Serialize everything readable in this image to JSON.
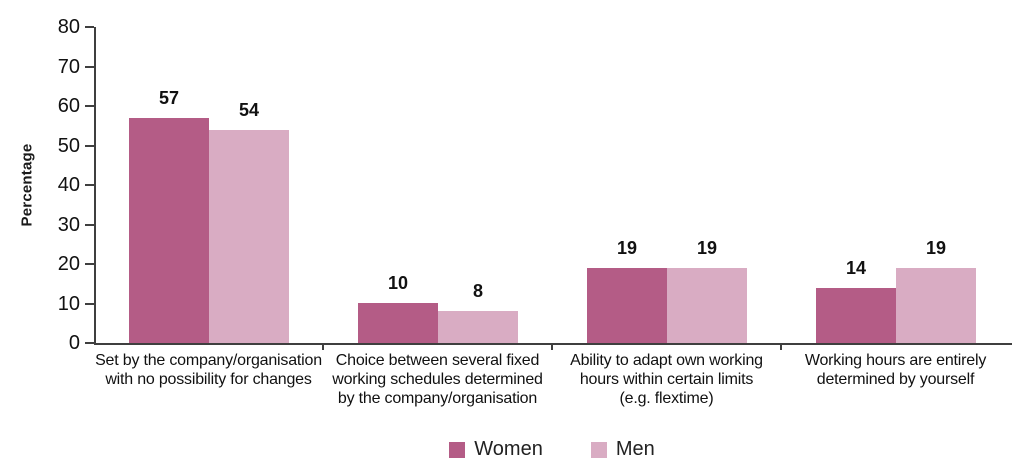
{
  "chart_data": {
    "type": "bar",
    "title": "",
    "xlabel": "",
    "ylabel": "Percentage",
    "ylim": [
      0,
      80
    ],
    "yticks": [
      0,
      10,
      20,
      30,
      40,
      50,
      60,
      70,
      80
    ],
    "grid": false,
    "legend_position": "bottom",
    "bar_value_labels_shown": true,
    "categories": [
      "Set by the company/organisation\nwith no possibility for changes",
      "Choice between several fixed\nworking schedules determined\nby the company/organisation",
      "Ability to adapt own working\nhours within certain limits\n(e.g. flextime)",
      "Working hours are entirely\ndetermined by yourself"
    ],
    "series": [
      {
        "name": "Women",
        "color": "#b45c86",
        "values": [
          57,
          10,
          19,
          14
        ]
      },
      {
        "name": "Men",
        "color": "#d9acc3",
        "values": [
          54,
          8,
          19,
          19
        ]
      }
    ]
  },
  "colors": {
    "axis": "#3f3f3f",
    "text": "#111111",
    "background": "#ffffff"
  }
}
